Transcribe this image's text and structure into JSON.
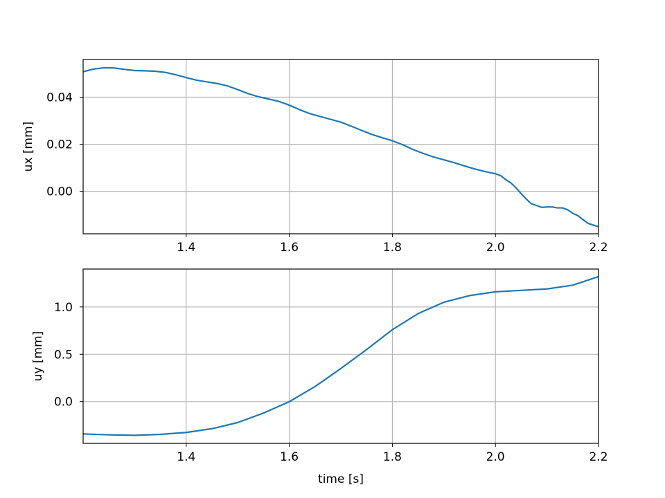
{
  "chart_data": [
    {
      "type": "line",
      "xlabel": "",
      "ylabel": "ux [mm]",
      "xlim": [
        1.2,
        2.2
      ],
      "ylim": [
        -0.018,
        0.056
      ],
      "xticks": [
        1.4,
        1.6,
        1.8,
        2.0,
        2.2
      ],
      "xtick_labels": [
        "1.4",
        "1.6",
        "1.8",
        "2.0",
        "2.2"
      ],
      "yticks": [
        0.0,
        0.02,
        0.04
      ],
      "ytick_labels": [
        "0.00",
        "0.02",
        "0.04"
      ],
      "grid": true,
      "color": "#1f77b4",
      "series": [
        {
          "x": [
            1.2,
            1.22,
            1.24,
            1.26,
            1.28,
            1.3,
            1.32,
            1.34,
            1.36,
            1.38,
            1.4,
            1.42,
            1.44,
            1.46,
            1.48,
            1.5,
            1.52,
            1.54,
            1.56,
            1.58,
            1.6,
            1.62,
            1.64,
            1.66,
            1.68,
            1.7,
            1.72,
            1.74,
            1.76,
            1.78,
            1.8,
            1.82,
            1.84,
            1.86,
            1.88,
            1.9,
            1.92,
            1.94,
            1.96,
            1.98,
            2.0,
            2.01,
            2.02,
            2.03,
            2.04,
            2.05,
            2.06,
            2.07,
            2.08,
            2.09,
            2.1,
            2.11,
            2.12,
            2.13,
            2.14,
            2.15,
            2.16,
            2.17,
            2.18,
            2.19,
            2.2
          ],
          "values": [
            0.0508,
            0.0519,
            0.0525,
            0.0524,
            0.0518,
            0.0513,
            0.0512,
            0.051,
            0.0505,
            0.0495,
            0.0483,
            0.0472,
            0.0465,
            0.0458,
            0.0448,
            0.0432,
            0.0415,
            0.0402,
            0.0392,
            0.0382,
            0.0366,
            0.0347,
            0.033,
            0.0318,
            0.0306,
            0.0294,
            0.0277,
            0.0259,
            0.0242,
            0.0228,
            0.0215,
            0.0198,
            0.0178,
            0.0161,
            0.0146,
            0.0134,
            0.0122,
            0.0108,
            0.0095,
            0.0084,
            0.0075,
            0.0067,
            0.005,
            0.0036,
            0.0015,
            -0.001,
            -0.0033,
            -0.0053,
            -0.006,
            -0.0068,
            -0.0066,
            -0.0066,
            -0.007,
            -0.007,
            -0.0078,
            -0.0093,
            -0.0103,
            -0.012,
            -0.0136,
            -0.0143,
            -0.015
          ]
        }
      ]
    },
    {
      "type": "line",
      "xlabel": "time [s]",
      "ylabel": "uy [mm]",
      "xlim": [
        1.2,
        2.2
      ],
      "ylim": [
        -0.44,
        1.4
      ],
      "xticks": [
        1.4,
        1.6,
        1.8,
        2.0,
        2.2
      ],
      "xtick_labels": [
        "1.4",
        "1.6",
        "1.8",
        "2.0",
        "2.2"
      ],
      "yticks": [
        0.0,
        0.5,
        1.0
      ],
      "ytick_labels": [
        "0.0",
        "0.5",
        "1.0"
      ],
      "grid": true,
      "color": "#1f77b4",
      "series": [
        {
          "x": [
            1.2,
            1.25,
            1.3,
            1.35,
            1.4,
            1.45,
            1.5,
            1.55,
            1.6,
            1.65,
            1.7,
            1.75,
            1.8,
            1.85,
            1.9,
            1.95,
            2.0,
            2.05,
            2.1,
            2.15,
            2.2
          ],
          "values": [
            -0.34,
            -0.35,
            -0.355,
            -0.345,
            -0.325,
            -0.285,
            -0.22,
            -0.12,
            0.0,
            0.16,
            0.35,
            0.55,
            0.76,
            0.93,
            1.05,
            1.12,
            1.16,
            1.175,
            1.19,
            1.23,
            1.32
          ]
        }
      ]
    }
  ]
}
